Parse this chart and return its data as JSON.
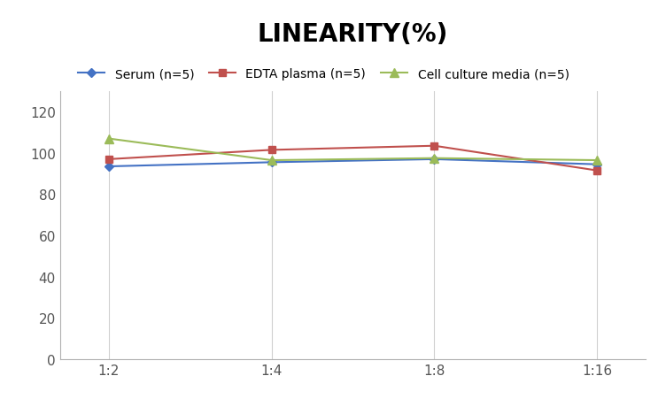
{
  "title": "LINEARITY(%)",
  "x_labels": [
    "1:2",
    "1:4",
    "1:8",
    "1:16"
  ],
  "x_positions": [
    0,
    1,
    2,
    3
  ],
  "series": [
    {
      "name": "Serum (n=5)",
      "values": [
        93.5,
        95.5,
        97.0,
        94.5
      ],
      "color": "#4472C4",
      "marker": "D",
      "marker_size": 5,
      "linewidth": 1.5
    },
    {
      "name": "EDTA plasma (n=5)",
      "values": [
        97.0,
        101.5,
        103.5,
        91.5
      ],
      "color": "#C0504D",
      "marker": "s",
      "marker_size": 6,
      "linewidth": 1.5
    },
    {
      "name": "Cell culture media (n=5)",
      "values": [
        107.0,
        96.5,
        97.5,
        96.5
      ],
      "color": "#9BBB59",
      "marker": "^",
      "marker_size": 7,
      "linewidth": 1.5
    }
  ],
  "ylim": [
    0,
    130
  ],
  "yticks": [
    0,
    20,
    40,
    60,
    80,
    100,
    120
  ],
  "grid_color": "#d0d0d0",
  "background_color": "#ffffff",
  "title_fontsize": 20,
  "legend_fontsize": 10,
  "tick_fontsize": 11
}
